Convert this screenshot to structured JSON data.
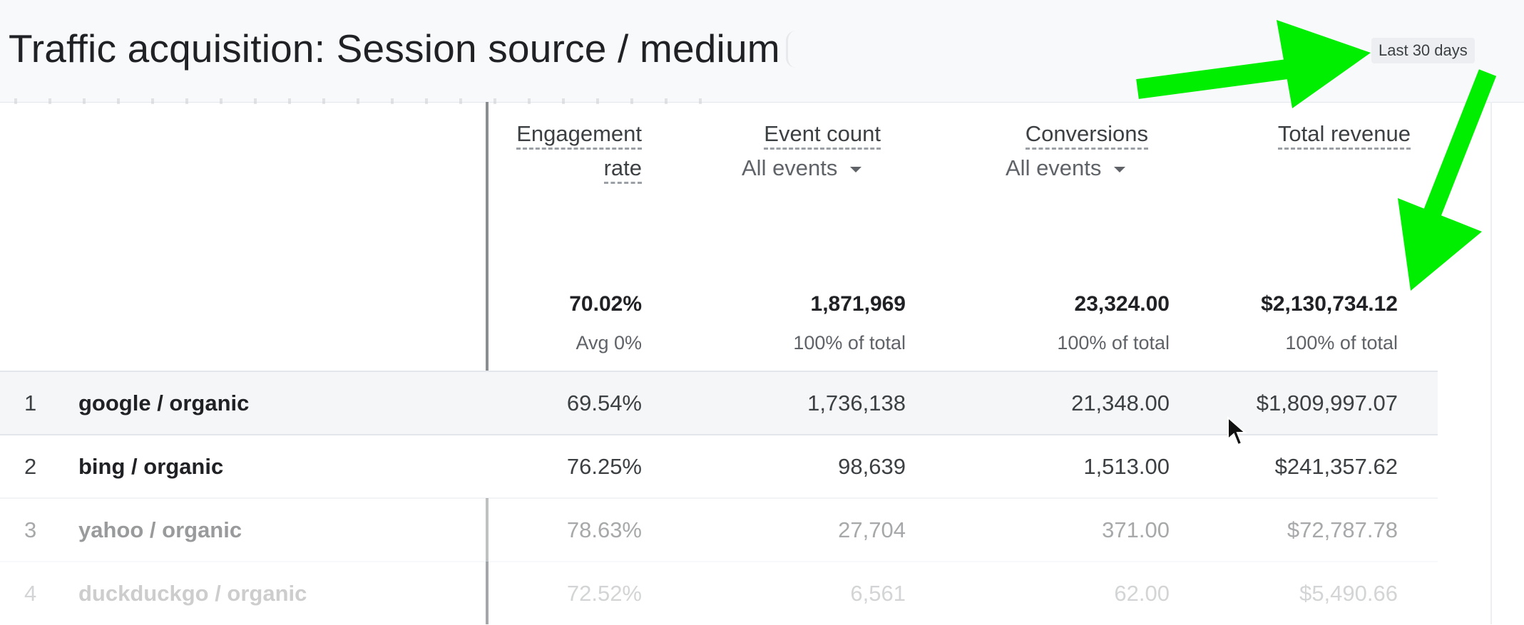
{
  "header": {
    "title": "Traffic acquisition: Session source / medium",
    "date_range": "Last 30 days"
  },
  "table": {
    "columns": [
      {
        "title_line1": "Engagement",
        "title_line2": "rate",
        "selector": ""
      },
      {
        "title_line1": "Event count",
        "title_line2": "",
        "selector": "All events"
      },
      {
        "title_line1": "Conversions",
        "title_line2": "",
        "selector": "All events"
      },
      {
        "title_line1": "Total revenue",
        "title_line2": "",
        "selector": ""
      }
    ],
    "totals": [
      {
        "value": "70.02%",
        "sub": "Avg 0%"
      },
      {
        "value": "1,871,969",
        "sub": "100% of total"
      },
      {
        "value": "23,324.00",
        "sub": "100% of total"
      },
      {
        "value": "$2,130,734.12",
        "sub": "100% of total"
      }
    ],
    "rows": [
      {
        "index": "1",
        "name": "google / organic",
        "engagement_rate": "69.54%",
        "event_count": "1,736,138",
        "conversions": "21,348.00",
        "total_revenue": "$1,809,997.07"
      },
      {
        "index": "2",
        "name": "bing / organic",
        "engagement_rate": "76.25%",
        "event_count": "98,639",
        "conversions": "1,513.00",
        "total_revenue": "$241,357.62"
      },
      {
        "index": "3",
        "name": "yahoo / organic",
        "engagement_rate": "78.63%",
        "event_count": "27,704",
        "conversions": "371.00",
        "total_revenue": "$72,787.78"
      },
      {
        "index": "4",
        "name": "duckduckgo / organic",
        "engagement_rate": "72.52%",
        "event_count": "6,561",
        "conversions": "62.00",
        "total_revenue": "$5,490.66"
      }
    ]
  },
  "annotation": {
    "arrow_color": "#00ee00"
  }
}
